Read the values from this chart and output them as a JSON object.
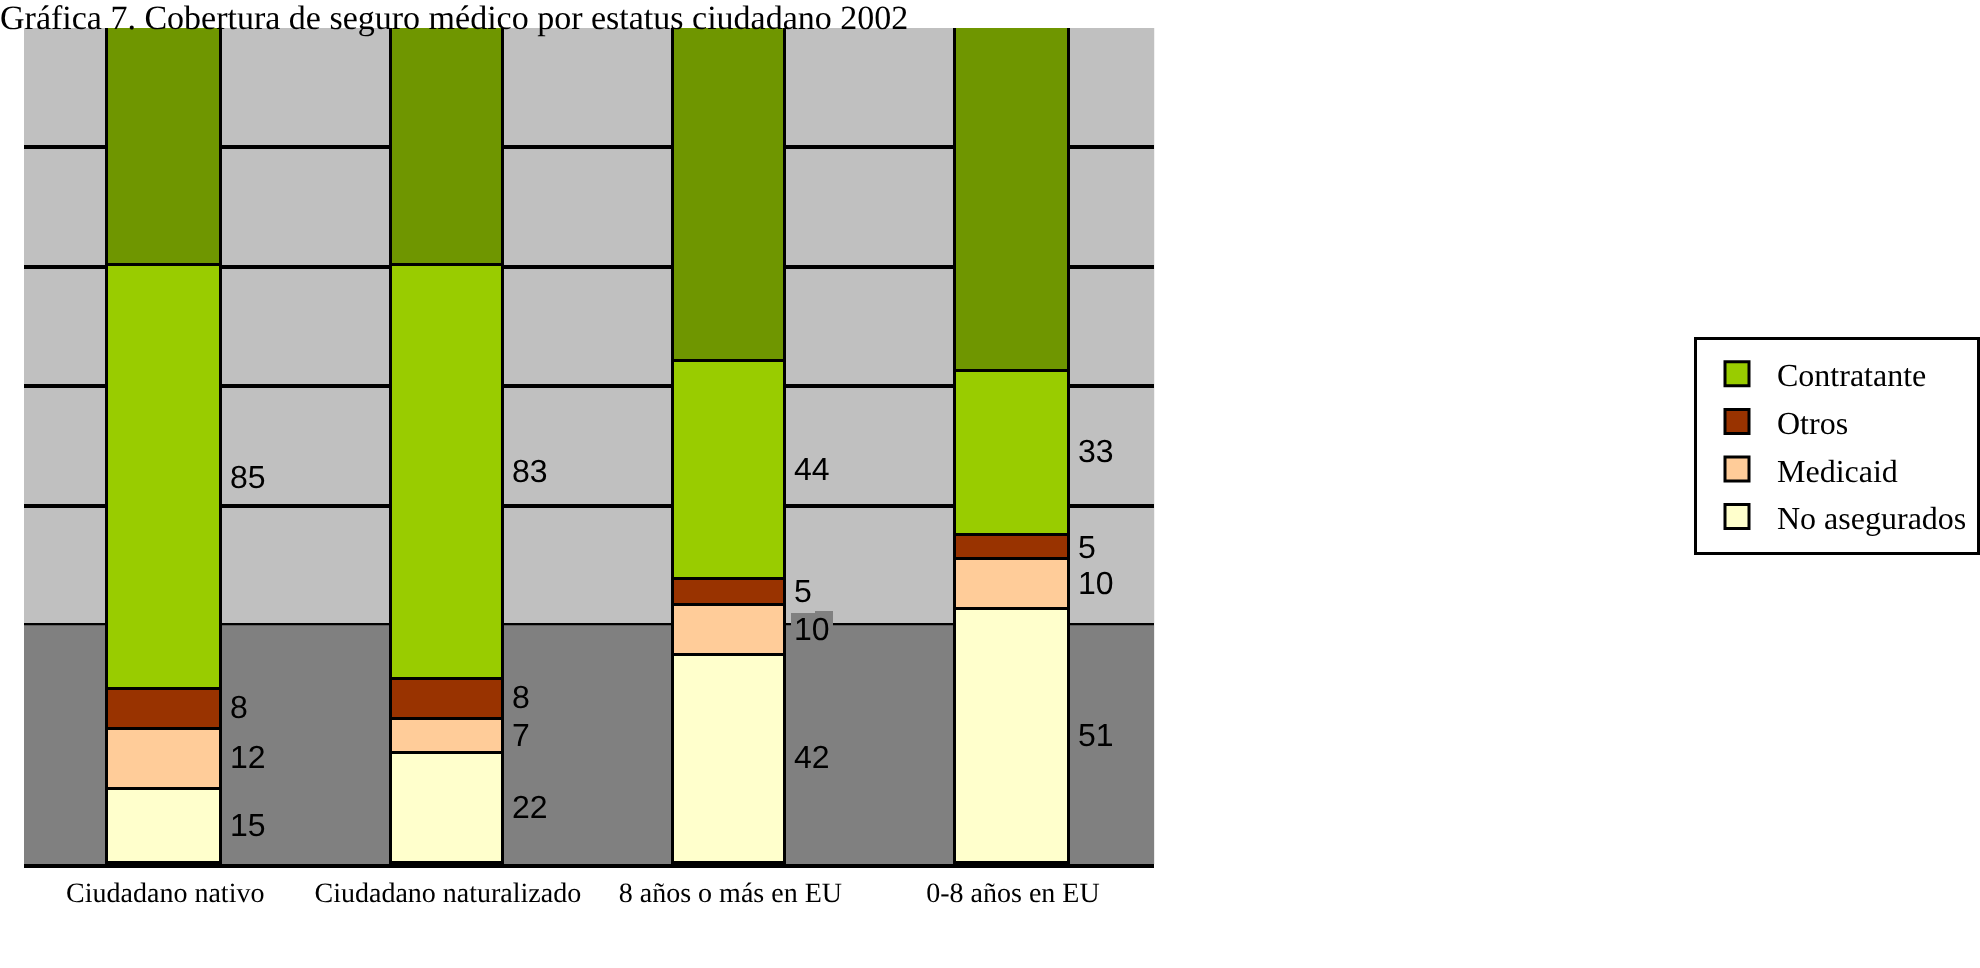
{
  "chart_data": {
    "type": "bar",
    "title": "Gráfica 7. Cobertura de seguro médico por estatus ciudadano 2002",
    "categories": [
      "Ciudadano nativo",
      "Ciudadano naturalizado",
      "8 años o más en EU",
      "0-8 años en EU"
    ],
    "stacked": true,
    "series": [
      {
        "name": "No asegurados",
        "color": "#ffffcc",
        "values": [
          15,
          22,
          42,
          51
        ],
        "value_labels": [
          "15",
          "22",
          "42",
          "51"
        ]
      },
      {
        "name": "Medicaid",
        "color": "#ffcc99",
        "values": [
          12,
          7,
          10,
          10
        ],
        "value_labels": [
          "12",
          "7",
          "10",
          "10"
        ]
      },
      {
        "name": "Otros",
        "color": "#993300",
        "values": [
          8,
          8,
          5,
          5
        ],
        "value_labels": [
          "8",
          "8",
          "5",
          "5"
        ]
      },
      {
        "name": "Contratante",
        "color": "#99cc00",
        "values": [
          85,
          83,
          44,
          33
        ],
        "value_labels": [
          "85",
          "83",
          "44",
          "33"
        ]
      },
      {
        "color": "#6f9600",
        "values": [
          48,
          48,
          67,
          69
        ]
      }
    ],
    "ylim": [
      0,
      168
    ],
    "yticks": [
      {
        "value": 0,
        "label": null
      },
      {
        "value": 48,
        "label": null
      },
      {
        "value": 72,
        "label": null
      },
      {
        "value": 96,
        "label": null
      },
      {
        "value": 120,
        "label": null
      },
      {
        "value": 144,
        "label": null
      },
      {
        "value": 168,
        "label": null
      }
    ],
    "bands": [
      {
        "axis": "y",
        "from": 0,
        "to": 48,
        "color": "#808080"
      }
    ],
    "grid": "y",
    "legend": "right"
  }
}
